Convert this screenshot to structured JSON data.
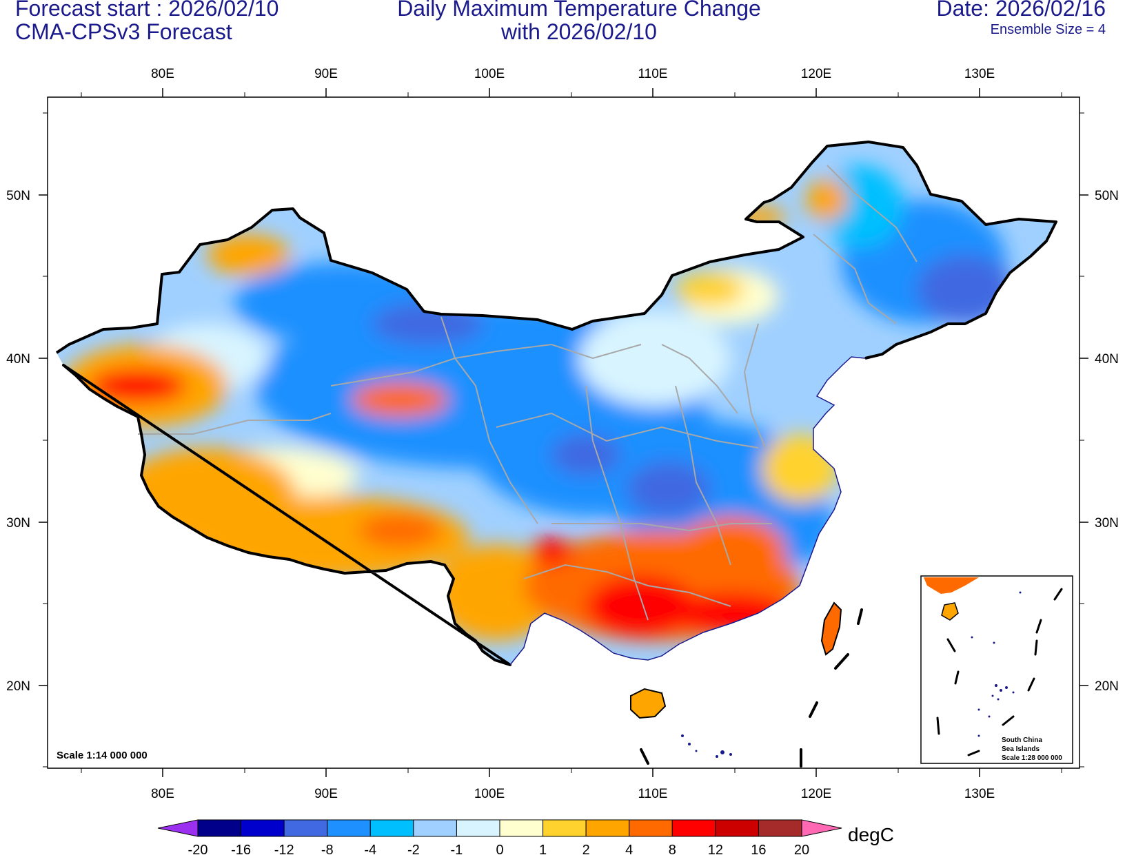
{
  "header": {
    "forecast_start": "Forecast start : 2026/02/10",
    "model": "CMA-CPSv3 Forecast",
    "title_line1": "Daily Maximum Temperature Change",
    "title_line2": "with 2026/02/10",
    "date": "Date: 2026/02/16",
    "ensemble": "Ensemble Size = 4"
  },
  "map": {
    "lon_labels": [
      "80E",
      "90E",
      "100E",
      "110E",
      "120E",
      "130E"
    ],
    "lat_labels": [
      "50N",
      "40N",
      "30N",
      "20N"
    ],
    "scale_main": "Scale 1:14 000 000",
    "inset_title": "South China",
    "inset_subtitle": "Sea Islands",
    "inset_scale": "Scale 1:28 000 000"
  },
  "colorbar": {
    "unit": "degC",
    "levels": [
      "-20",
      "-16",
      "-12",
      "-8",
      "-4",
      "-2",
      "-1",
      "0",
      "1",
      "2",
      "4",
      "8",
      "12",
      "16",
      "20"
    ],
    "colors": [
      "#9b30f0",
      "#00008b",
      "#0000cd",
      "#4169e1",
      "#1e90ff",
      "#00bfff",
      "#a0d0ff",
      "#d8f4ff",
      "#ffffd0",
      "#ffd22e",
      "#ffa500",
      "#ff6a00",
      "#ff0000",
      "#cd0000",
      "#a52a2a",
      "#ff69b4"
    ]
  },
  "colors": {
    "title": "#1a1a8c",
    "border": "#000000",
    "province": "#a8a8a8"
  }
}
